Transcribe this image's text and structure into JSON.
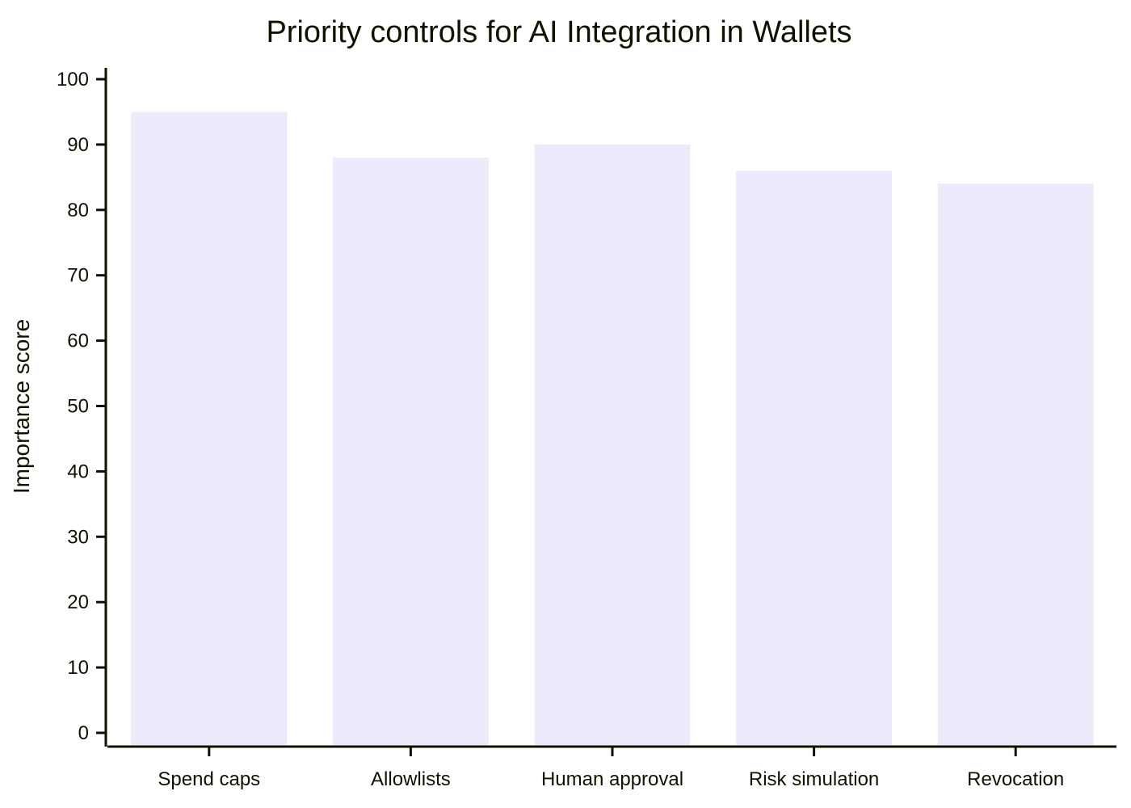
{
  "chart_data": {
    "type": "bar",
    "title": "Priority controls for AI Integration in Wallets",
    "xlabel": "",
    "ylabel": "Importance score",
    "categories": [
      "Spend caps",
      "Allowlists",
      "Human approval",
      "Risk simulation",
      "Revocation"
    ],
    "values": [
      95,
      88,
      90,
      86,
      84
    ],
    "ylim": [
      0,
      100
    ],
    "yticks": [
      0,
      10,
      20,
      30,
      40,
      50,
      60,
      70,
      80,
      90,
      100
    ],
    "grid": false,
    "legend": "none",
    "bar_color": "#ebebfb",
    "axis_color": "#111100"
  }
}
